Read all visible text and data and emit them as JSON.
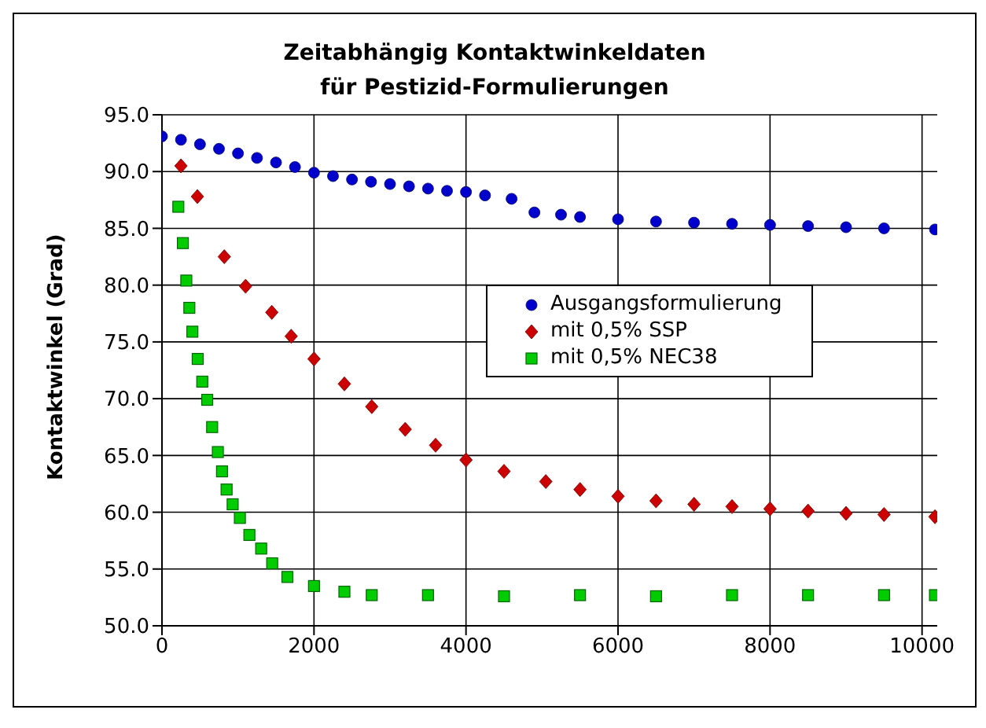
{
  "chart_data": {
    "type": "scatter",
    "title": "Zeitabhängig Kontaktwinkeldaten",
    "subtitle": "für Pestizid-Formulierungen",
    "ylabel": "Kontaktwinkel (Grad)",
    "xlim": [
      0,
      10200
    ],
    "xticks": [
      0,
      2000,
      4000,
      6000,
      8000,
      10000
    ],
    "ylim": [
      50,
      95
    ],
    "yticks": [
      {
        "value": 50,
        "label": "50.0"
      },
      {
        "value": 55,
        "label": "55.0"
      },
      {
        "value": 60,
        "label": "60.0"
      },
      {
        "value": 65,
        "label": "65.0"
      },
      {
        "value": 70,
        "label": "70.0"
      },
      {
        "value": 75,
        "label": "75.0"
      },
      {
        "value": 80,
        "label": "80.0"
      },
      {
        "value": 85,
        "label": "85.0"
      },
      {
        "value": 90,
        "label": "90.0"
      },
      {
        "value": 95,
        "label": "95.0"
      }
    ],
    "grid": true,
    "legend": "right",
    "series": [
      {
        "name": "Ausgangsformulierung",
        "color": "#0000cc",
        "marker": "circle",
        "x": [
          0,
          250,
          500,
          750,
          1000,
          1250,
          1500,
          1750,
          2000,
          2250,
          2500,
          2750,
          3000,
          3250,
          3500,
          3750,
          4000,
          4250,
          4600,
          4900,
          5250,
          5500,
          6000,
          6500,
          7000,
          7500,
          8000,
          8500,
          9000,
          9500,
          10170
        ],
        "values": [
          93.1,
          92.8,
          92.4,
          92.0,
          91.6,
          91.2,
          90.8,
          90.4,
          89.9,
          89.6,
          89.3,
          89.1,
          88.9,
          88.7,
          88.5,
          88.3,
          88.2,
          87.9,
          87.6,
          86.4,
          86.2,
          86.0,
          85.8,
          85.6,
          85.5,
          85.4,
          85.3,
          85.2,
          85.1,
          85.0,
          84.9
        ]
      },
      {
        "name": "mit 0,5% SSP",
        "color": "#cc0000",
        "marker": "diamond",
        "x": [
          250,
          466,
          820,
          1100,
          1445,
          1700,
          2000,
          2400,
          2760,
          3200,
          3600,
          4000,
          4500,
          5050,
          5500,
          6000,
          6500,
          7000,
          7500,
          8000,
          8500,
          9000,
          9500,
          10170
        ],
        "values": [
          90.5,
          87.8,
          82.5,
          79.9,
          77.6,
          75.5,
          73.5,
          71.3,
          69.3,
          67.3,
          65.9,
          64.6,
          63.6,
          62.7,
          62.0,
          61.4,
          61.0,
          60.7,
          60.5,
          60.3,
          60.1,
          59.9,
          59.8,
          59.6
        ]
      },
      {
        "name": "mit 0,5% NEC38",
        "color": "#00cc00",
        "marker": "square",
        "x": [
          215,
          275,
          320,
          360,
          400,
          470,
          530,
          595,
          660,
          735,
          790,
          850,
          930,
          1025,
          1150,
          1305,
          1450,
          1650,
          2000,
          2400,
          2760,
          3500,
          4500,
          5500,
          6500,
          7500,
          8500,
          9500,
          10170
        ],
        "values": [
          86.9,
          83.7,
          80.4,
          78.0,
          75.9,
          73.5,
          71.5,
          69.9,
          67.5,
          65.3,
          63.6,
          62.0,
          60.7,
          59.5,
          58.0,
          56.8,
          55.5,
          54.3,
          53.5,
          53.0,
          52.7,
          52.7,
          52.6,
          52.7,
          52.6,
          52.7,
          52.7,
          52.7,
          52.7
        ]
      }
    ]
  }
}
